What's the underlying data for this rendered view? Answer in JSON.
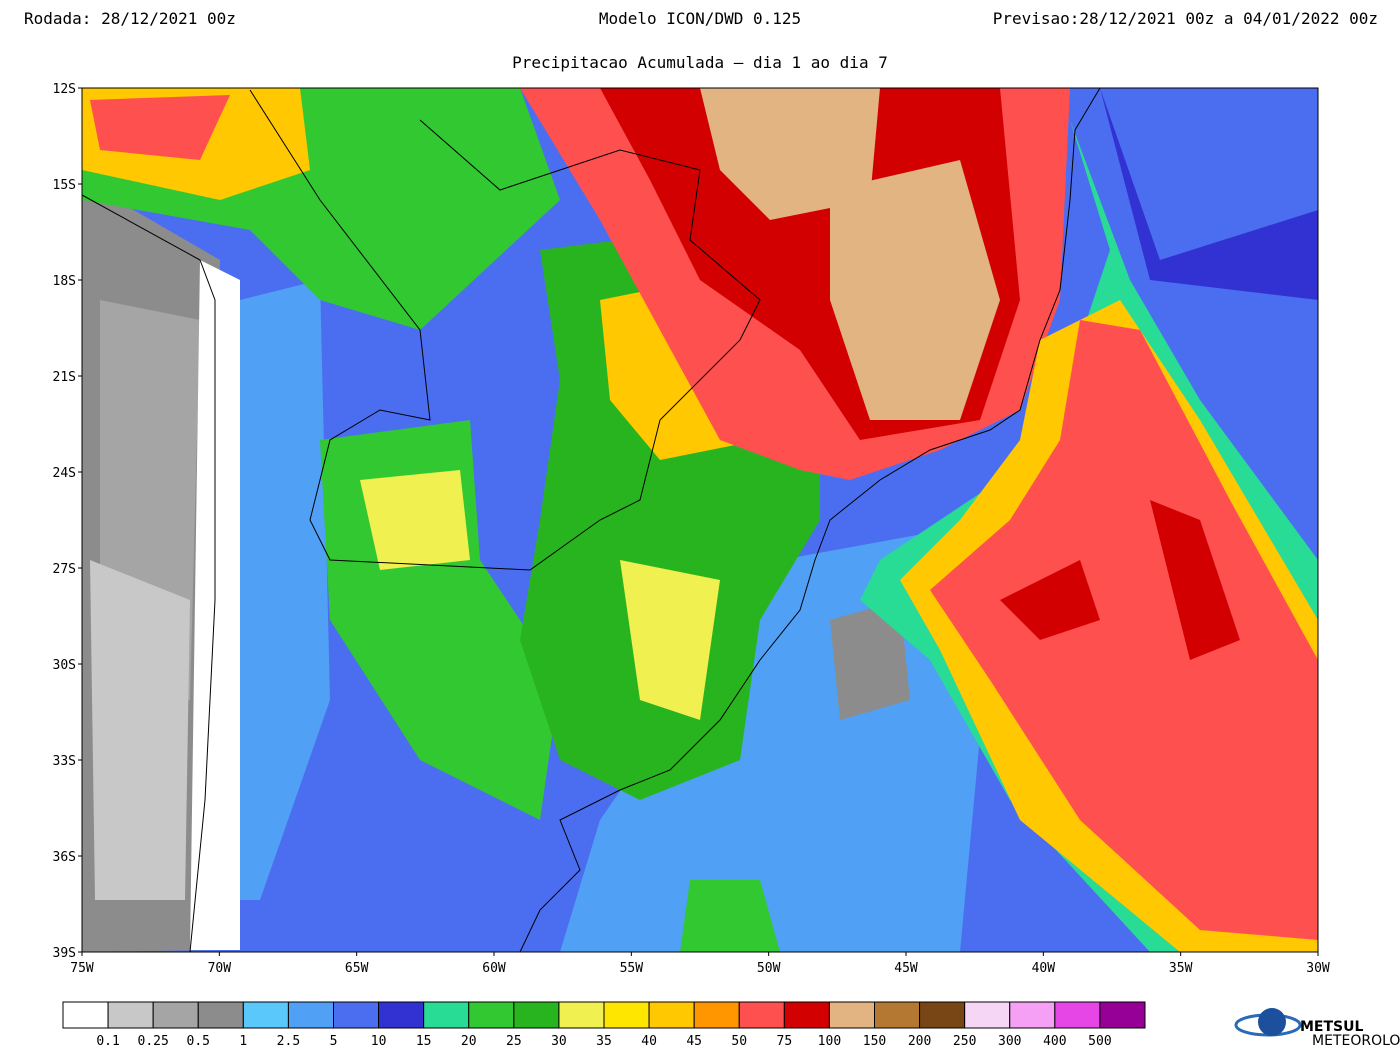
{
  "header": {
    "run": "Rodada: 28/12/2021 00z",
    "model": "Modelo ICON/DWD 0.125",
    "forecast": "Previsao:28/12/2021 00z a 04/01/2022 00z",
    "subtitle": "Precipitacao Acumulada — dia 1 ao dia 7"
  },
  "map": {
    "latitude_labels": [
      "12S",
      "15S",
      "18S",
      "21S",
      "24S",
      "27S",
      "30S",
      "33S",
      "36S",
      "39S"
    ],
    "longitude_labels": [
      "75W",
      "70W",
      "65W",
      "60W",
      "55W",
      "50W",
      "45W",
      "40W",
      "35W",
      "30W"
    ]
  },
  "legend": {
    "colors": [
      "#ffffff",
      "#c8c8c8",
      "#a5a5a5",
      "#8c8c8c",
      "#5ac8fa",
      "#50a0f5",
      "#4b6ef0",
      "#3232d2",
      "#28dc96",
      "#32c832",
      "#28b41e",
      "#f0f050",
      "#ffe600",
      "#ffc800",
      "#ff9600",
      "#ff5050",
      "#d20000",
      "#e1b482",
      "#b47832",
      "#784614",
      "#f5d7f5",
      "#f5a0f5",
      "#e646e6",
      "#960096"
    ],
    "labels": [
      "0.1",
      "0.25",
      "0.5",
      "1",
      "2.5",
      "5",
      "10",
      "15",
      "20",
      "25",
      "30",
      "35",
      "40",
      "45",
      "50",
      "75",
      "100",
      "150",
      "200",
      "250",
      "300",
      "400",
      "500"
    ]
  },
  "logo": {
    "name": "METSUL",
    "tagline": "METEOROLOGIA"
  }
}
